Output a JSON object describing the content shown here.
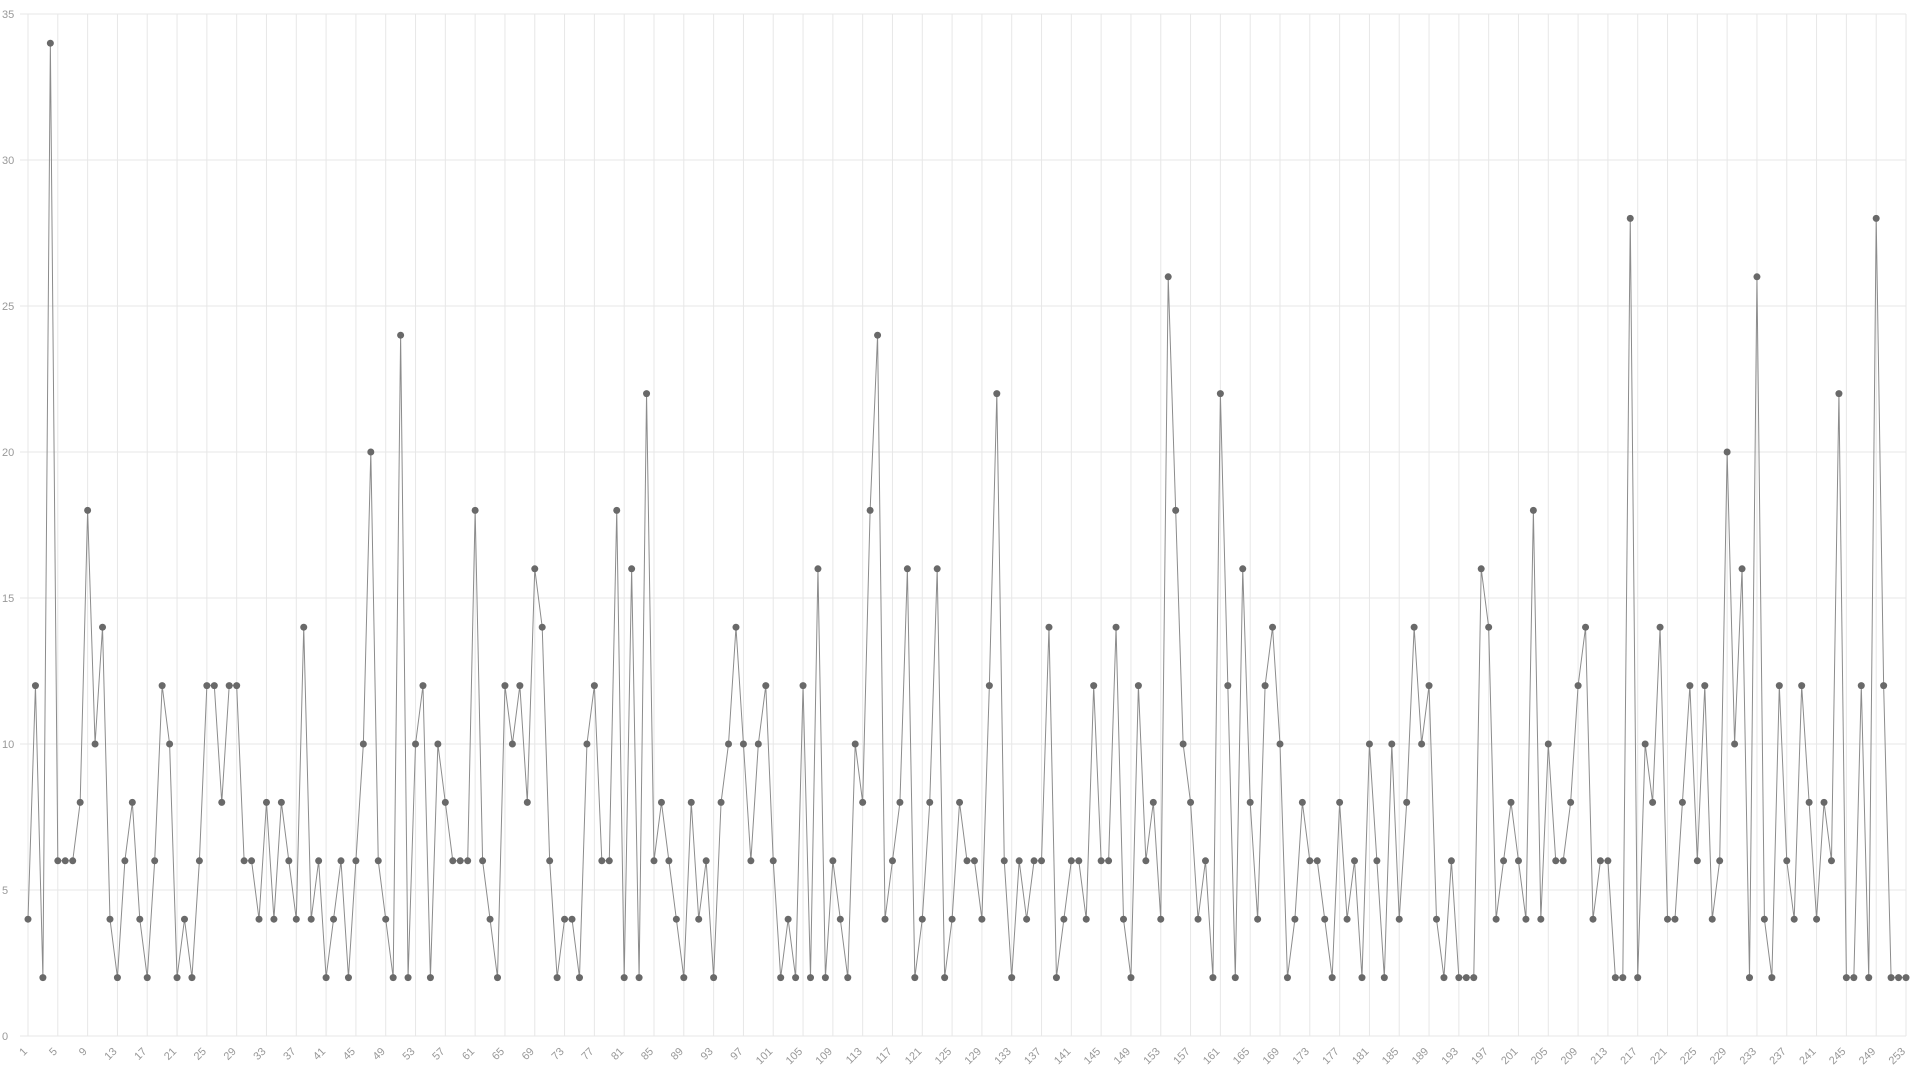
{
  "chart_data": {
    "type": "line",
    "title": "",
    "xlabel": "",
    "ylabel": "",
    "ylim": [
      0,
      35
    ],
    "y_ticks": [
      0,
      5,
      10,
      15,
      20,
      25,
      30,
      35
    ],
    "x_ticks": [
      1,
      5,
      9,
      13,
      17,
      21,
      25,
      29,
      33,
      37,
      41,
      45,
      49,
      53,
      57,
      61,
      65,
      69,
      73,
      77,
      81,
      85,
      89,
      93,
      97,
      101,
      105,
      109,
      113,
      117,
      121,
      125,
      129,
      133,
      137,
      141,
      145,
      149,
      153,
      157,
      161,
      165,
      169,
      173,
      177,
      181,
      185,
      189,
      193,
      197,
      201,
      205,
      209,
      213,
      217,
      221,
      225,
      229,
      233,
      237,
      241,
      245,
      249,
      253
    ],
    "grid": true,
    "legend": "none",
    "colors": {
      "line": "#8c8c8c",
      "point": "#696969",
      "grid": "#e7e7e7",
      "tick_text": "#999999",
      "background": "#ffffff"
    },
    "point_radius": 3.5,
    "values": [
      4,
      12,
      2,
      34,
      6,
      6,
      6,
      8,
      18,
      10,
      14,
      4,
      2,
      6,
      8,
      4,
      2,
      6,
      12,
      10,
      2,
      4,
      2,
      6,
      12,
      12,
      8,
      12,
      12,
      6,
      6,
      4,
      8,
      4,
      8,
      6,
      4,
      14,
      4,
      6,
      2,
      4,
      6,
      2,
      6,
      10,
      20,
      6,
      4,
      2,
      24,
      2,
      10,
      12,
      2,
      10,
      8,
      6,
      6,
      6,
      18,
      6,
      4,
      2,
      12,
      10,
      12,
      8,
      16,
      14,
      6,
      2,
      4,
      4,
      2,
      10,
      12,
      6,
      6,
      18,
      2,
      16,
      2,
      22,
      6,
      8,
      6,
      4,
      2,
      8,
      4,
      6,
      2,
      8,
      10,
      14,
      10,
      6,
      10,
      12,
      6,
      2,
      4,
      2,
      12,
      2,
      16,
      2,
      6,
      4,
      2,
      10,
      8,
      18,
      24,
      4,
      6,
      8,
      16,
      2,
      4,
      8,
      16,
      2,
      4,
      8,
      6,
      6,
      4,
      12,
      22,
      6,
      2,
      6,
      4,
      6,
      6,
      14,
      2,
      4,
      6,
      6,
      4,
      12,
      6,
      6,
      14,
      4,
      2,
      12,
      6,
      8,
      4,
      26,
      18,
      10,
      8,
      4,
      6,
      2,
      22,
      12,
      2,
      16,
      8,
      4,
      12,
      14,
      10,
      2,
      4,
      8,
      6,
      6,
      4,
      2,
      8,
      4,
      6,
      2,
      10,
      6,
      2,
      10,
      4,
      8,
      14,
      10,
      12,
      4,
      2,
      6,
      2,
      2,
      2,
      16,
      14,
      4,
      6,
      8,
      6,
      4,
      18,
      4,
      10,
      6,
      6,
      8,
      12,
      14,
      4,
      6,
      6,
      2,
      2,
      28,
      2,
      10,
      8,
      14,
      4,
      4,
      8,
      12,
      6,
      12,
      4,
      6,
      20,
      10,
      16,
      2,
      26,
      4,
      2,
      12,
      6,
      4,
      12,
      8,
      4,
      8,
      6,
      22,
      2,
      2,
      12,
      2,
      28,
      12,
      2,
      2,
      2
    ]
  }
}
